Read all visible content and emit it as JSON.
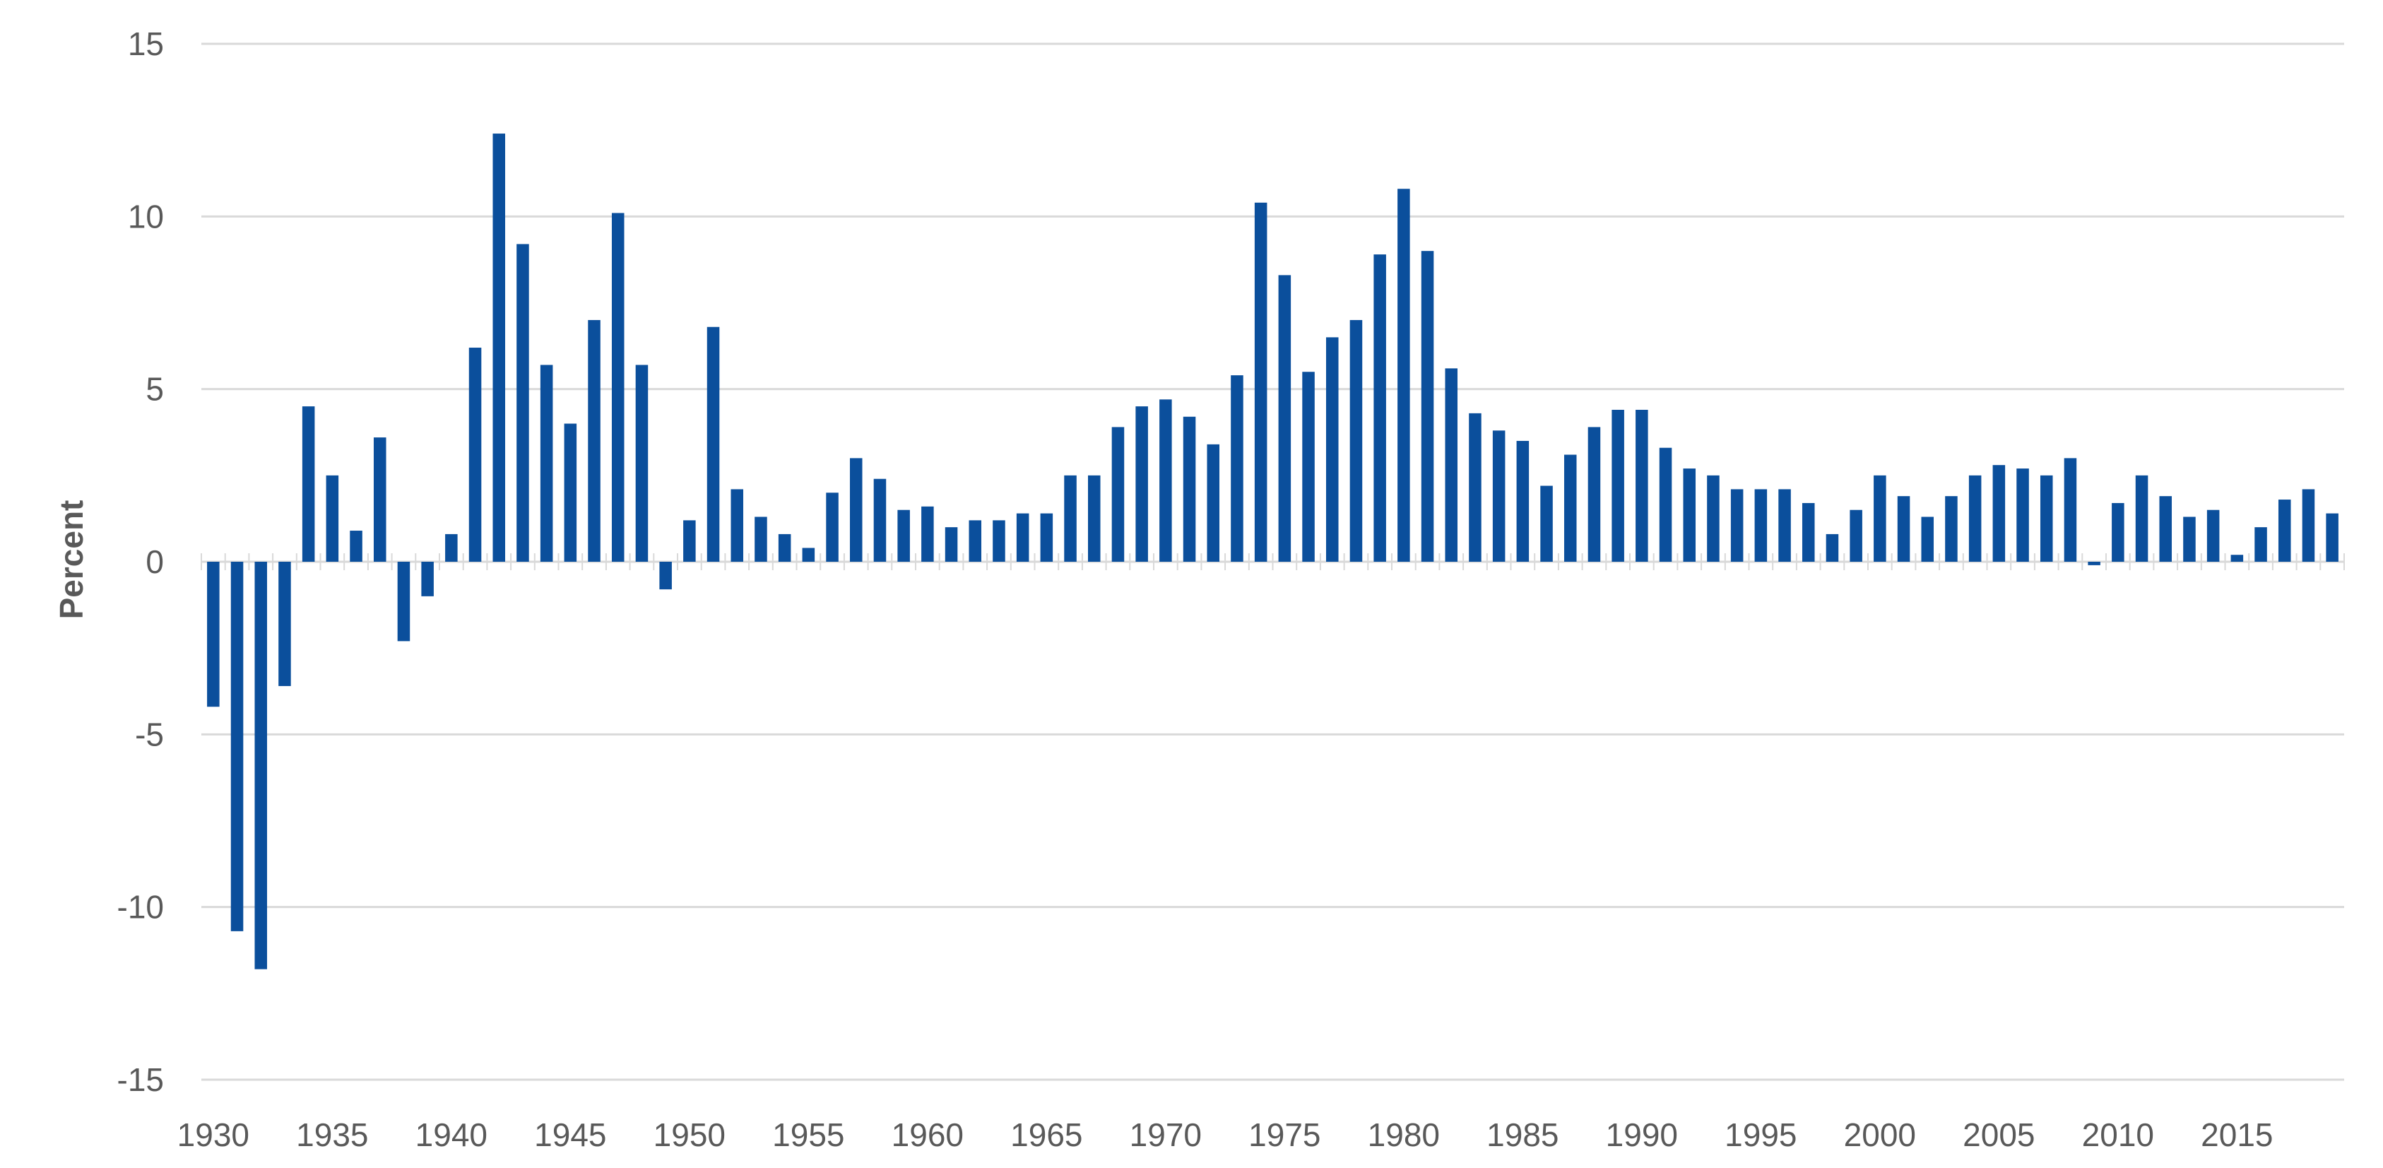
{
  "chart_data": {
    "type": "bar",
    "title": "",
    "xlabel": "",
    "ylabel": "Percent",
    "ylim": [
      -15,
      15
    ],
    "yticks": [
      15,
      10,
      5,
      0,
      -5,
      -10,
      -15
    ],
    "xticks": [
      1930,
      1935,
      1940,
      1945,
      1950,
      1955,
      1960,
      1965,
      1970,
      1975,
      1980,
      1985,
      1990,
      1995,
      2000,
      2005,
      2010,
      2015
    ],
    "grid": true,
    "legend": "none",
    "bar_color": "#0b4f9c",
    "grid_color": "#d9d9d9",
    "categories": [
      1930,
      1931,
      1932,
      1933,
      1934,
      1935,
      1936,
      1937,
      1938,
      1939,
      1940,
      1941,
      1942,
      1943,
      1944,
      1945,
      1946,
      1947,
      1948,
      1949,
      1950,
      1951,
      1952,
      1953,
      1954,
      1955,
      1956,
      1957,
      1958,
      1959,
      1960,
      1961,
      1962,
      1963,
      1964,
      1965,
      1966,
      1967,
      1968,
      1969,
      1970,
      1971,
      1972,
      1973,
      1974,
      1975,
      1976,
      1977,
      1978,
      1979,
      1980,
      1981,
      1982,
      1983,
      1984,
      1985,
      1986,
      1987,
      1988,
      1989,
      1990,
      1991,
      1992,
      1993,
      1994,
      1995,
      1996,
      1997,
      1998,
      1999,
      2000,
      2001,
      2002,
      2003,
      2004,
      2005,
      2006,
      2007,
      2008,
      2009,
      2010,
      2011,
      2012,
      2013,
      2014,
      2015,
      2016,
      2017,
      2018,
      2019
    ],
    "values": [
      -4.2,
      -10.7,
      -11.8,
      -3.6,
      4.5,
      2.5,
      0.9,
      3.6,
      -2.3,
      -1.0,
      0.8,
      6.2,
      12.4,
      9.2,
      5.7,
      4.0,
      7.0,
      10.1,
      5.7,
      -0.8,
      1.2,
      6.8,
      2.1,
      1.3,
      0.8,
      0.4,
      2.0,
      3.0,
      2.4,
      1.5,
      1.6,
      1.0,
      1.2,
      1.2,
      1.4,
      1.4,
      2.5,
      2.5,
      3.9,
      4.5,
      4.7,
      4.2,
      3.4,
      5.4,
      10.4,
      8.3,
      5.5,
      6.5,
      7.0,
      8.9,
      10.8,
      9.0,
      5.6,
      4.3,
      3.8,
      3.5,
      2.2,
      3.1,
      3.9,
      4.4,
      4.4,
      3.3,
      2.7,
      2.5,
      2.1,
      2.1,
      2.1,
      1.7,
      0.8,
      1.5,
      2.5,
      1.9,
      1.3,
      1.9,
      2.5,
      2.8,
      2.7,
      2.5,
      3.0,
      -0.1,
      1.7,
      2.5,
      1.9,
      1.3,
      1.5,
      0.2,
      1.0,
      1.8,
      2.1,
      1.4
    ]
  }
}
